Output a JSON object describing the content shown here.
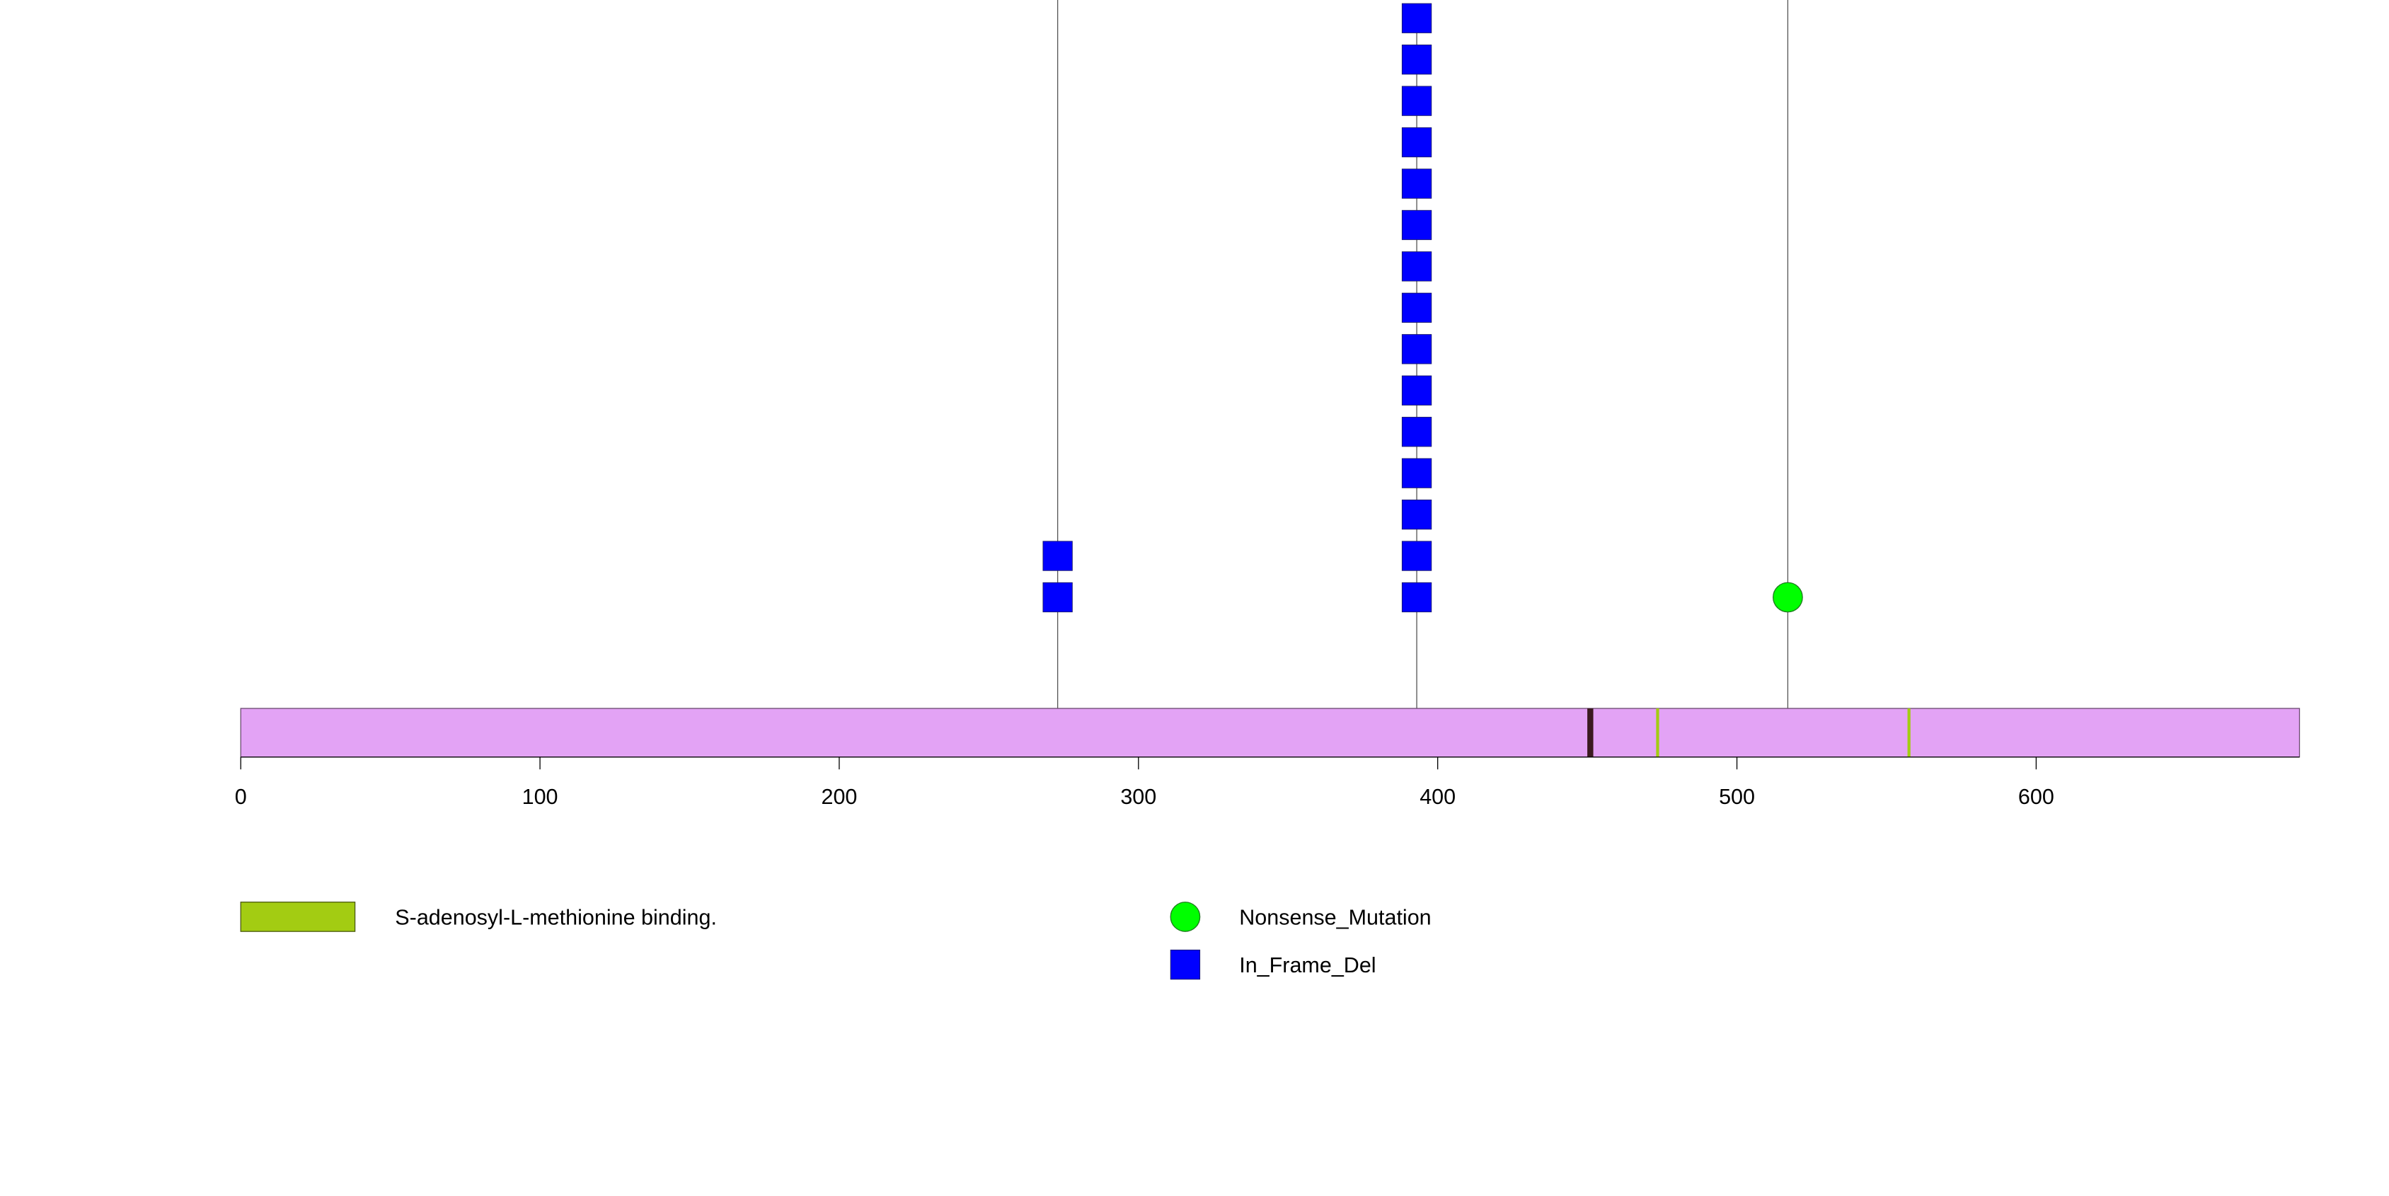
{
  "chart_data": {
    "type": "scatter",
    "protein_length": 688,
    "x_axis": {
      "min": 0,
      "max": 688,
      "ticks": [
        0,
        100,
        200,
        300,
        400,
        500,
        600
      ]
    },
    "mutations": [
      {
        "position": 273,
        "type": "In_Frame_Del",
        "count": 2
      },
      {
        "position": 393,
        "type": "In_Frame_Del",
        "count": 15
      },
      {
        "position": 517,
        "type": "Nonsense_Mutation",
        "count": 1
      }
    ],
    "extended_lines": [
      273,
      517
    ],
    "domains": [
      {
        "start": 450,
        "end": 452,
        "color": "#3b1a20"
      },
      {
        "start": 473,
        "end": 474,
        "color": "#a3cc12"
      },
      {
        "start": 557,
        "end": 558,
        "color": "#a3cc12"
      }
    ],
    "legend": {
      "domains": [
        {
          "label": "S-adenosyl-L-methionine binding.",
          "color": "#a3cc12"
        }
      ],
      "mutation_types": [
        {
          "label": "Nonsense_Mutation",
          "shape": "circle",
          "color": "#00ff00"
        },
        {
          "label": "In_Frame_Del",
          "shape": "square",
          "color": "#0000ff"
        }
      ]
    },
    "colors": {
      "protein_bar": "#e3a3f5",
      "stem": "#555555",
      "axis": "#000000"
    }
  }
}
